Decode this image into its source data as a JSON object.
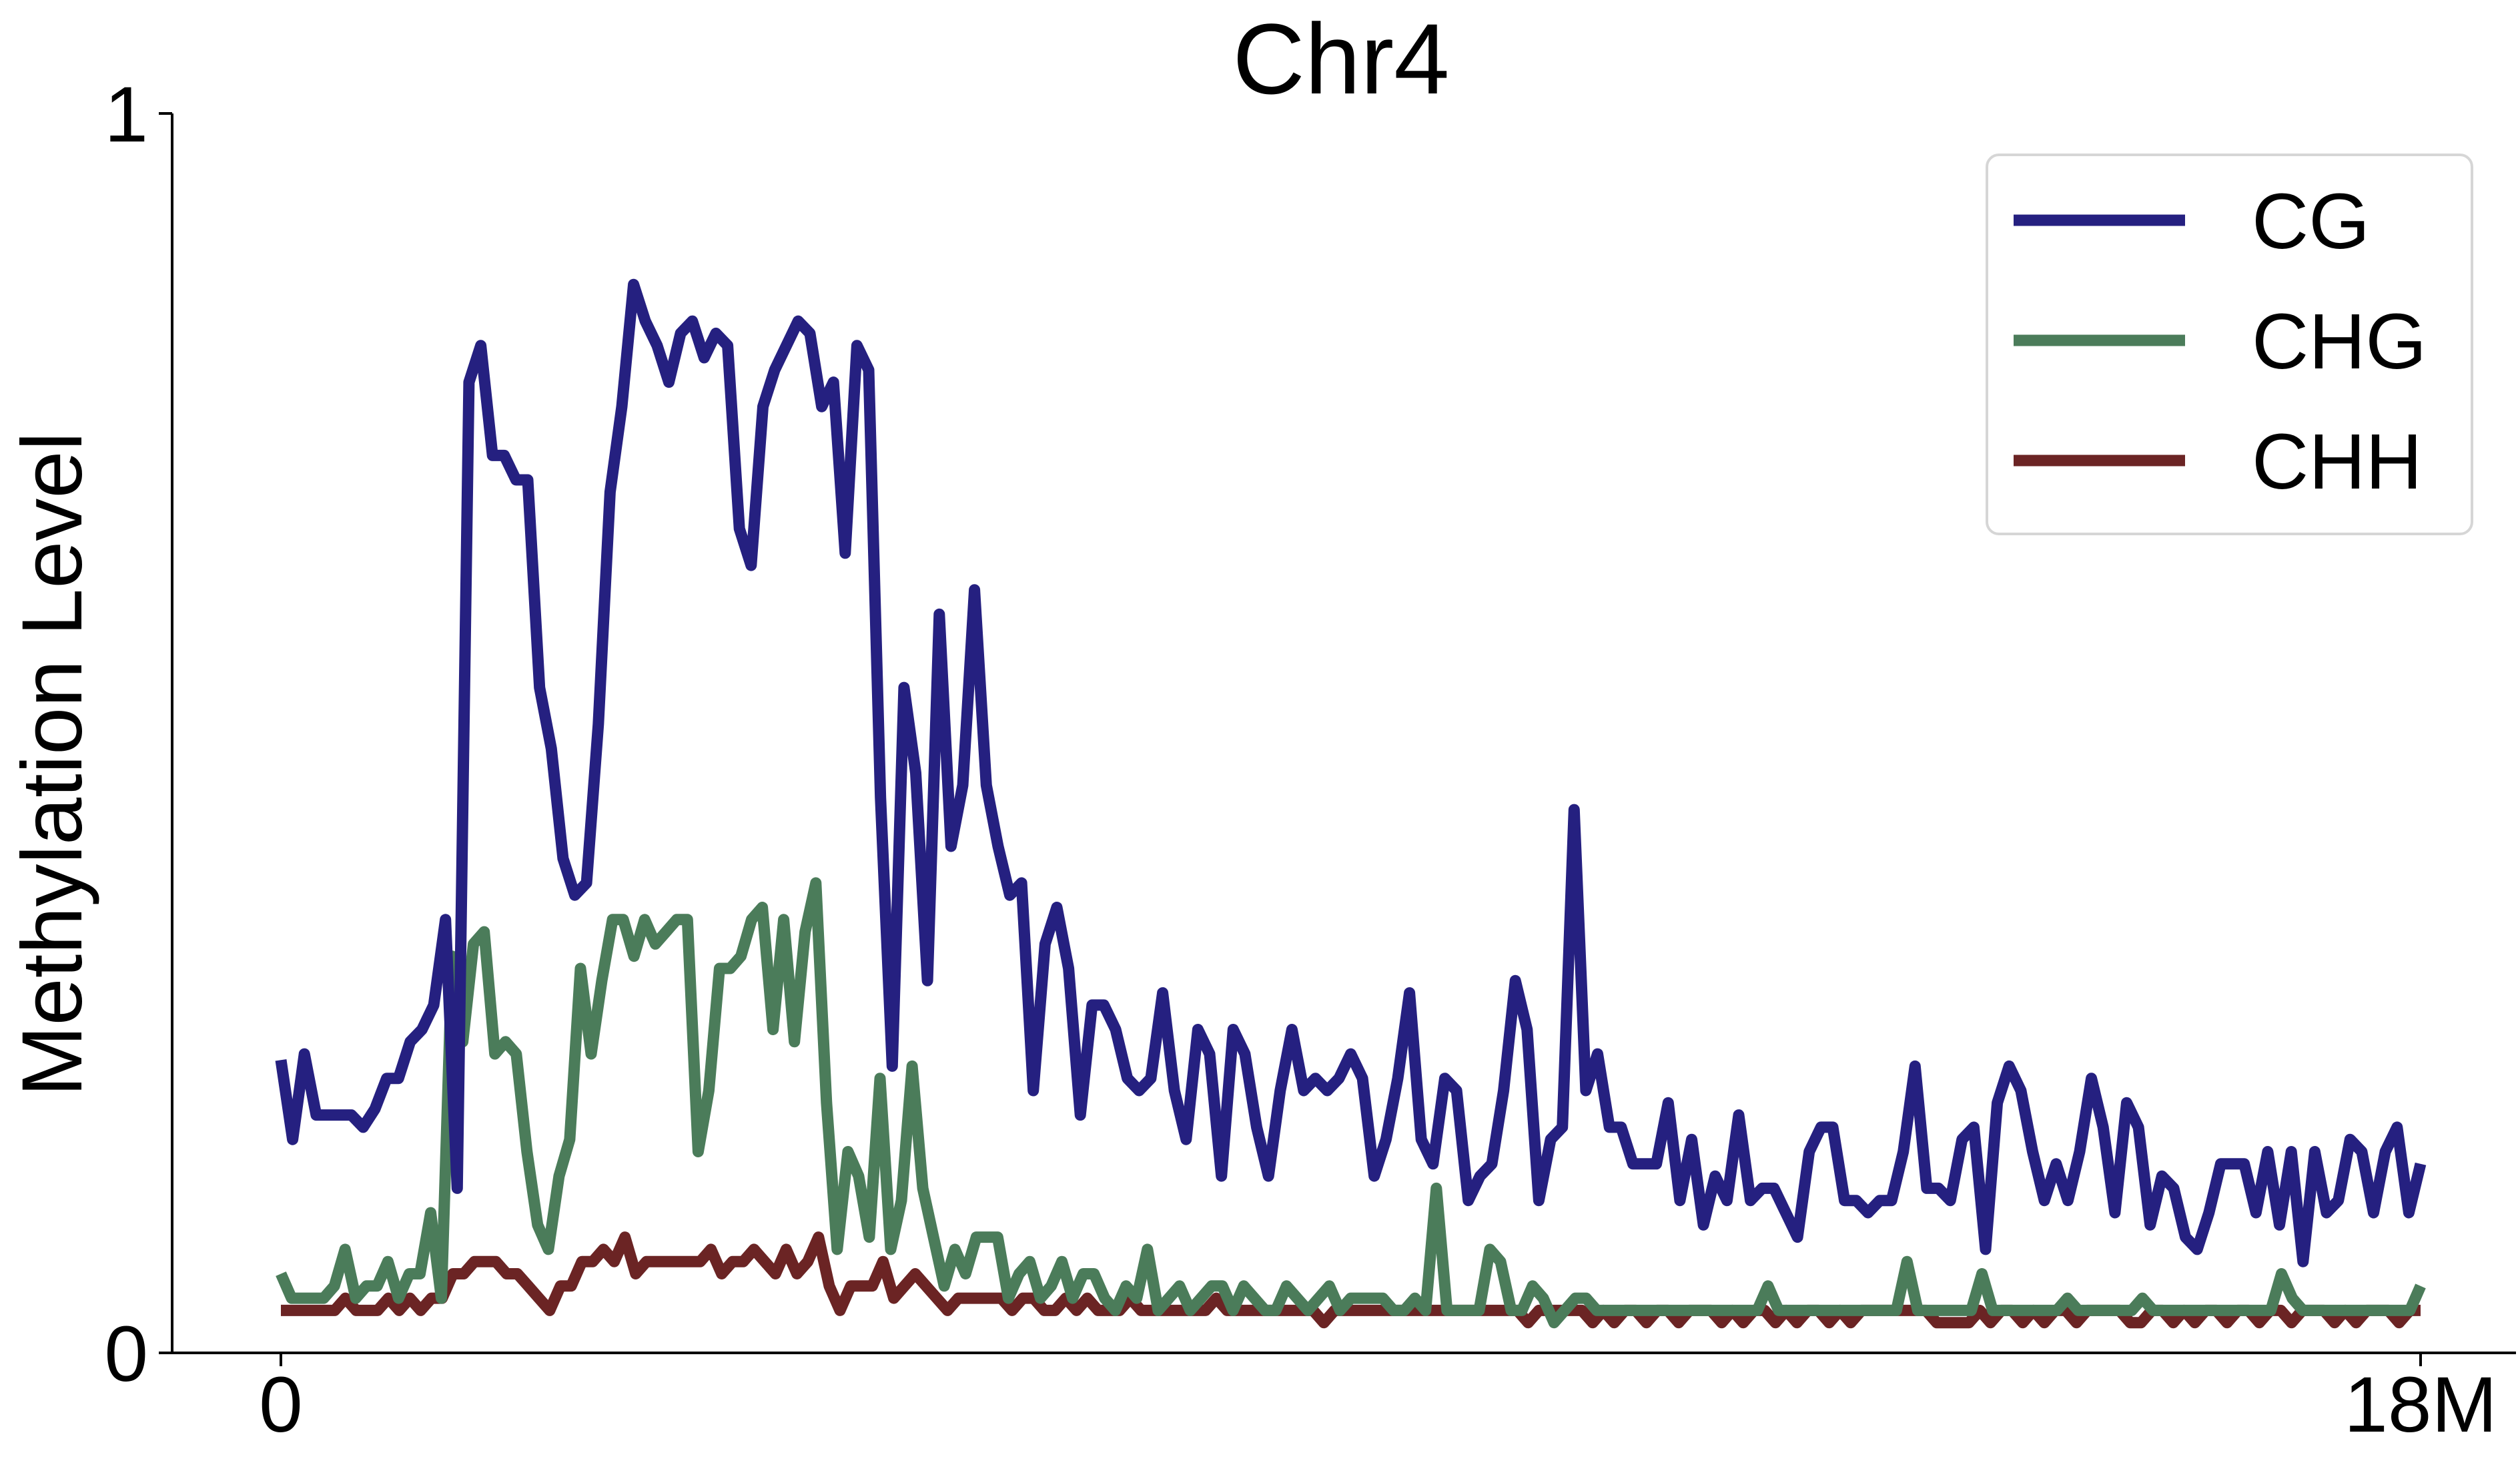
{
  "chart_data": {
    "type": "line",
    "title": "Chr4",
    "xlabel": "",
    "ylabel": "Methylation Level",
    "xlim": [
      0,
      18000000
    ],
    "ylim": [
      0,
      1
    ],
    "x_ticks": [
      {
        "value": 0,
        "label": "0"
      },
      {
        "value": 18000000,
        "label": "18M"
      }
    ],
    "y_ticks": [
      {
        "value": 0,
        "label": "0"
      },
      {
        "value": 1,
        "label": "1"
      }
    ],
    "grid": false,
    "legend_position": "top-right",
    "series": [
      {
        "name": "CG",
        "color": "#252080",
        "values": [
          0.225,
          0.16,
          0.23,
          0.18,
          0.18,
          0.18,
          0.18,
          0.17,
          0.185,
          0.21,
          0.21,
          0.24,
          0.25,
          0.27,
          0.34,
          0.12,
          0.78,
          0.81,
          0.72,
          0.72,
          0.7,
          0.7,
          0.53,
          0.48,
          0.39,
          0.36,
          0.37,
          0.5,
          0.69,
          0.76,
          0.86,
          0.83,
          0.81,
          0.78,
          0.82,
          0.83,
          0.8,
          0.82,
          0.81,
          0.66,
          0.63,
          0.76,
          0.79,
          0.81,
          0.83,
          0.82,
          0.76,
          0.78,
          0.64,
          0.81,
          0.79,
          0.44,
          0.22,
          0.53,
          0.46,
          0.29,
          0.59,
          0.4,
          0.45,
          0.61,
          0.45,
          0.4,
          0.36,
          0.37,
          0.2,
          0.32,
          0.35,
          0.3,
          0.18,
          0.27,
          0.27,
          0.25,
          0.21,
          0.2,
          0.21,
          0.28,
          0.2,
          0.16,
          0.25,
          0.23,
          0.13,
          0.25,
          0.23,
          0.17,
          0.13,
          0.2,
          0.25,
          0.2,
          0.21,
          0.2,
          0.21,
          0.23,
          0.21,
          0.13,
          0.16,
          0.21,
          0.28,
          0.16,
          0.14,
          0.21,
          0.2,
          0.11,
          0.13,
          0.14,
          0.2,
          0.29,
          0.25,
          0.11,
          0.16,
          0.17,
          0.43,
          0.2,
          0.23,
          0.17,
          0.17,
          0.14,
          0.14,
          0.14,
          0.19,
          0.11,
          0.16,
          0.09,
          0.13,
          0.11,
          0.18,
          0.11,
          0.12,
          0.12,
          0.1,
          0.08,
          0.15,
          0.17,
          0.17,
          0.11,
          0.11,
          0.1,
          0.11,
          0.11,
          0.15,
          0.22,
          0.12,
          0.12,
          0.11,
          0.16,
          0.17,
          0.07,
          0.19,
          0.22,
          0.2,
          0.15,
          0.11,
          0.14,
          0.11,
          0.15,
          0.21,
          0.17,
          0.1,
          0.19,
          0.17,
          0.09,
          0.13,
          0.12,
          0.08,
          0.07,
          0.1,
          0.14,
          0.14,
          0.14,
          0.1,
          0.15,
          0.09,
          0.15,
          0.06,
          0.15,
          0.1,
          0.11,
          0.16,
          0.15,
          0.1,
          0.15,
          0.17,
          0.1,
          0.14
        ]
      },
      {
        "name": "CHG",
        "color": "#4b7c5a",
        "values": [
          0.05,
          0.03,
          0.03,
          0.03,
          0.03,
          0.04,
          0.07,
          0.03,
          0.04,
          0.04,
          0.06,
          0.03,
          0.05,
          0.05,
          0.1,
          0.03,
          0.31,
          0.24,
          0.32,
          0.33,
          0.23,
          0.24,
          0.23,
          0.15,
          0.09,
          0.07,
          0.13,
          0.16,
          0.3,
          0.23,
          0.29,
          0.34,
          0.34,
          0.31,
          0.34,
          0.32,
          0.33,
          0.34,
          0.34,
          0.15,
          0.2,
          0.3,
          0.3,
          0.31,
          0.34,
          0.35,
          0.25,
          0.34,
          0.24,
          0.33,
          0.37,
          0.19,
          0.07,
          0.15,
          0.13,
          0.08,
          0.21,
          0.07,
          0.11,
          0.22,
          0.12,
          0.08,
          0.04,
          0.07,
          0.05,
          0.08,
          0.08,
          0.08,
          0.03,
          0.05,
          0.06,
          0.03,
          0.04,
          0.06,
          0.03,
          0.05,
          0.05,
          0.03,
          0.02,
          0.04,
          0.03,
          0.07,
          0.02,
          0.03,
          0.04,
          0.02,
          0.03,
          0.04,
          0.04,
          0.02,
          0.04,
          0.03,
          0.02,
          0.02,
          0.04,
          0.03,
          0.02,
          0.03,
          0.04,
          0.02,
          0.03,
          0.03,
          0.03,
          0.03,
          0.02,
          0.02,
          0.03,
          0.02,
          0.12,
          0.02,
          0.02,
          0.02,
          0.02,
          0.07,
          0.06,
          0.02,
          0.02,
          0.04,
          0.03,
          0.01,
          0.02,
          0.03,
          0.03,
          0.02,
          0.02,
          0.02,
          0.02,
          0.02,
          0.02,
          0.02,
          0.02,
          0.02,
          0.02,
          0.02,
          0.02,
          0.02,
          0.02,
          0.02,
          0.02,
          0.04,
          0.02,
          0.02,
          0.02,
          0.02,
          0.02,
          0.02,
          0.02,
          0.02,
          0.02,
          0.02,
          0.02,
          0.02,
          0.06,
          0.02,
          0.02,
          0.02,
          0.02,
          0.02,
          0.02,
          0.05,
          0.02,
          0.02,
          0.02,
          0.02,
          0.02,
          0.02,
          0.02,
          0.03,
          0.02,
          0.02,
          0.02,
          0.02,
          0.02,
          0.02,
          0.03,
          0.02,
          0.02,
          0.02,
          0.02,
          0.02,
          0.02,
          0.02,
          0.02,
          0.02,
          0.02,
          0.02,
          0.02,
          0.05,
          0.03,
          0.02,
          0.02,
          0.02,
          0.02,
          0.02,
          0.02,
          0.02,
          0.02,
          0.02,
          0.02,
          0.02,
          0.04
        ]
      },
      {
        "name": "CHH",
        "color": "#6b2424",
        "values": [
          0.02,
          0.02,
          0.02,
          0.02,
          0.02,
          0.02,
          0.03,
          0.02,
          0.02,
          0.02,
          0.03,
          0.02,
          0.03,
          0.02,
          0.03,
          0.03,
          0.05,
          0.05,
          0.06,
          0.06,
          0.06,
          0.05,
          0.05,
          0.04,
          0.03,
          0.02,
          0.04,
          0.04,
          0.06,
          0.06,
          0.07,
          0.06,
          0.08,
          0.05,
          0.06,
          0.06,
          0.06,
          0.06,
          0.06,
          0.06,
          0.07,
          0.05,
          0.06,
          0.06,
          0.07,
          0.06,
          0.05,
          0.07,
          0.05,
          0.06,
          0.08,
          0.04,
          0.02,
          0.04,
          0.04,
          0.04,
          0.06,
          0.03,
          0.04,
          0.05,
          0.04,
          0.03,
          0.02,
          0.03,
          0.03,
          0.03,
          0.03,
          0.03,
          0.02,
          0.03,
          0.03,
          0.02,
          0.02,
          0.03,
          0.02,
          0.03,
          0.02,
          0.02,
          0.02,
          0.03,
          0.02,
          0.02,
          0.02,
          0.02,
          0.02,
          0.02,
          0.02,
          0.03,
          0.02,
          0.02,
          0.02,
          0.02,
          0.02,
          0.02,
          0.02,
          0.02,
          0.02,
          0.01,
          0.02,
          0.02,
          0.02,
          0.02,
          0.02,
          0.02,
          0.02,
          0.02,
          0.02,
          0.02,
          0.02,
          0.02,
          0.02,
          0.02,
          0.02,
          0.02,
          0.02,
          0.02,
          0.01,
          0.02,
          0.02,
          0.02,
          0.02,
          0.02,
          0.01,
          0.02,
          0.01,
          0.02,
          0.02,
          0.01,
          0.02,
          0.02,
          0.01,
          0.02,
          0.02,
          0.02,
          0.01,
          0.02,
          0.01,
          0.02,
          0.02,
          0.01,
          0.02,
          0.01,
          0.02,
          0.02,
          0.01,
          0.02,
          0.01,
          0.02,
          0.02,
          0.02,
          0.02,
          0.02,
          0.02,
          0.02,
          0.01,
          0.01,
          0.01,
          0.01,
          0.02,
          0.01,
          0.02,
          0.02,
          0.01,
          0.02,
          0.01,
          0.02,
          0.02,
          0.01,
          0.02,
          0.02,
          0.02,
          0.02,
          0.01,
          0.01,
          0.02,
          0.02,
          0.01,
          0.02,
          0.01,
          0.02,
          0.02,
          0.01,
          0.02,
          0.02,
          0.01,
          0.02,
          0.02,
          0.01,
          0.02,
          0.02,
          0.02,
          0.01,
          0.02,
          0.01,
          0.02,
          0.02,
          0.02,
          0.01,
          0.02,
          0.02
        ]
      }
    ]
  }
}
